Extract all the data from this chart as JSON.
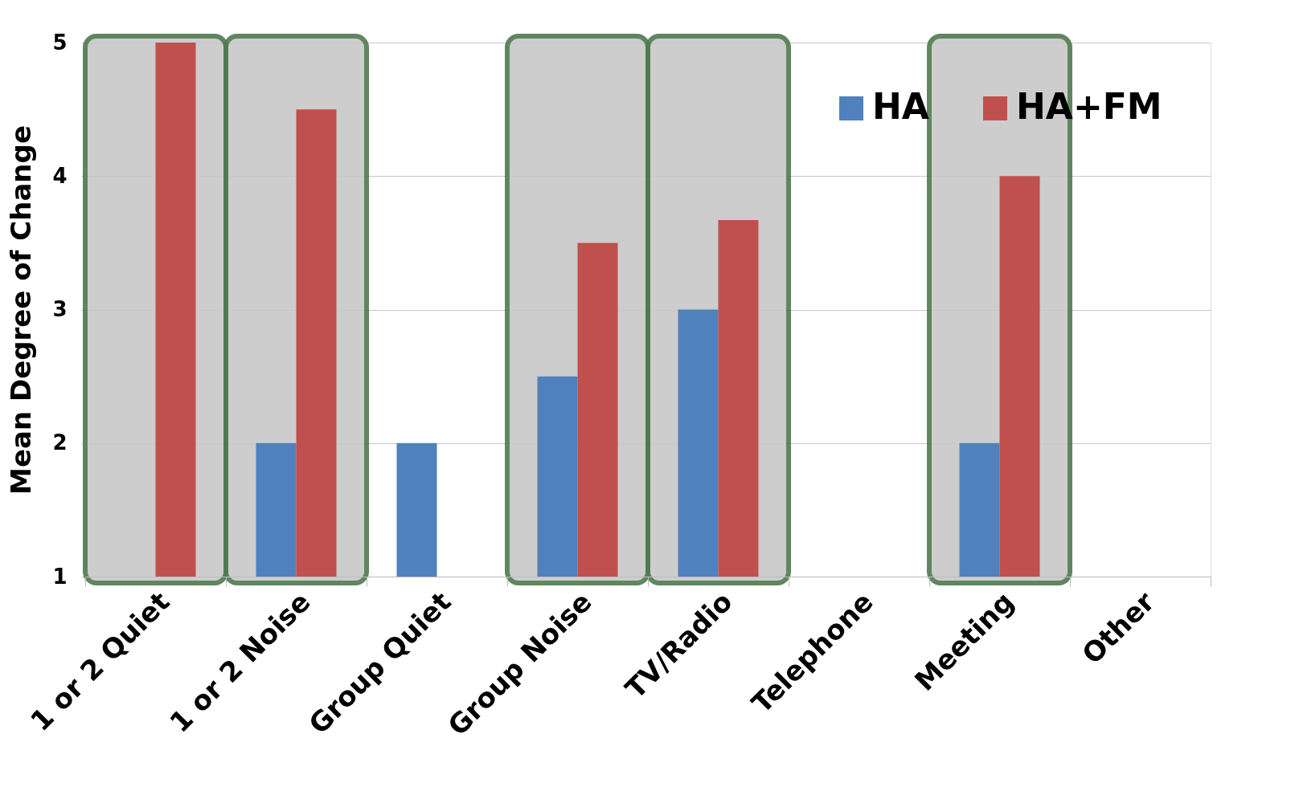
{
  "chart_data": {
    "type": "bar",
    "ylabel": "Mean Degree of Change",
    "categories": [
      "1 or 2 Quiet",
      "1 or 2 Noise",
      "Group Quiet",
      "Group Noise",
      "TV/Radio",
      "Telephone",
      "Meeting",
      "Other"
    ],
    "series": [
      {
        "name": "HA",
        "color": "#4f81bd",
        "values": [
          null,
          2,
          2,
          2.5,
          3,
          null,
          2,
          null
        ]
      },
      {
        "name": "HA+FM",
        "color": "#c0504d",
        "values": [
          5,
          4.5,
          null,
          3.5,
          3.67,
          null,
          4,
          null
        ]
      }
    ],
    "ylim": [
      1,
      5
    ],
    "yticks": [
      1,
      2,
      3,
      4,
      5
    ],
    "grid": "y",
    "legend": "top right",
    "bands": [
      {
        "axis": "x",
        "from": "1 or 2 Quiet",
        "to": "1 or 2 Quiet",
        "color": "#c8c8c8"
      },
      {
        "axis": "x",
        "from": "1 or 2 Noise",
        "to": "1 or 2 Noise",
        "color": "#c8c8c8"
      },
      {
        "axis": "x",
        "from": "Group Noise",
        "to": "Group Noise",
        "color": "#c8c8c8"
      },
      {
        "axis": "x",
        "from": "TV/Radio",
        "to": "TV/Radio",
        "color": "#c8c8c8"
      },
      {
        "axis": "x",
        "from": "Meeting",
        "to": "Meeting",
        "color": "#c8c8c8"
      }
    ]
  }
}
